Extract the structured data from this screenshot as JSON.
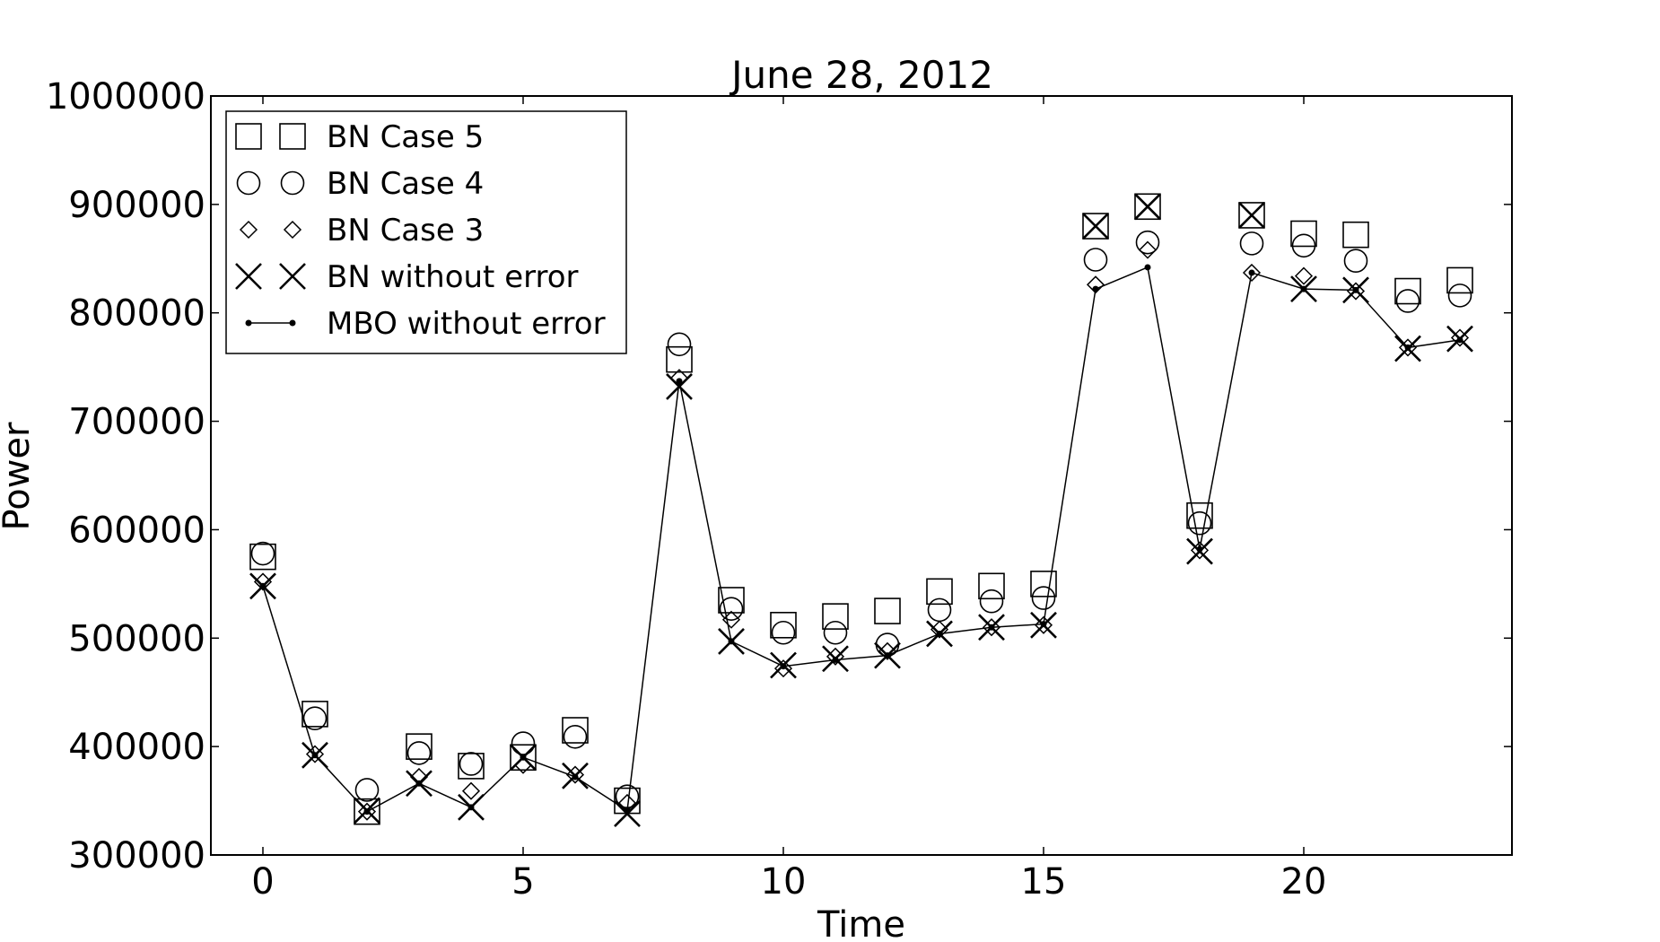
{
  "chart_data": {
    "type": "scatter",
    "title": "June 28, 2012",
    "xlabel": "Time",
    "ylabel": "Power",
    "xlim": [
      -1,
      24
    ],
    "ylim": [
      300000,
      1000000
    ],
    "xticks": [
      0,
      5,
      10,
      15,
      20
    ],
    "yticks": [
      300000,
      400000,
      500000,
      600000,
      700000,
      800000,
      900000,
      1000000
    ],
    "x_tick_labels": [
      "0",
      "5",
      "10",
      "15",
      "20"
    ],
    "y_tick_labels": [
      "300000",
      "400000",
      "500000",
      "600000",
      "700000",
      "800000",
      "900000",
      "1000000"
    ],
    "grid": false,
    "legend_position": "top-left",
    "x": [
      0,
      1,
      2,
      3,
      4,
      5,
      6,
      7,
      8,
      9,
      10,
      11,
      12,
      13,
      14,
      15,
      16,
      17,
      18,
      19,
      20,
      21,
      22,
      23
    ],
    "series": [
      {
        "name": "BN Case 5",
        "marker": "square",
        "values": [
          575000,
          430000,
          340000,
          400000,
          382000,
          390000,
          415000,
          350000,
          757000,
          535000,
          512000,
          520000,
          525000,
          543000,
          548000,
          550000,
          880000,
          898000,
          613000,
          890000,
          873000,
          872000,
          820000,
          830000
        ]
      },
      {
        "name": "BN Case 4",
        "marker": "circle",
        "values": [
          578000,
          426000,
          360000,
          394000,
          384000,
          403000,
          409000,
          354000,
          771000,
          527000,
          505000,
          505000,
          494000,
          526000,
          534000,
          537000,
          849000,
          865000,
          606000,
          864000,
          862000,
          848000,
          811000,
          816000
        ]
      },
      {
        "name": "BN Case 3",
        "marker": "diamond",
        "values": [
          552000,
          393000,
          340000,
          372000,
          359000,
          383000,
          374000,
          348000,
          740000,
          517000,
          472000,
          483000,
          488000,
          508000,
          510000,
          512000,
          826000,
          858000,
          581000,
          837000,
          834000,
          820000,
          768000,
          777000
        ]
      },
      {
        "name": "BN without error",
        "marker": "x",
        "values": [
          548000,
          392000,
          341000,
          366000,
          344000,
          390000,
          373000,
          338000,
          732000,
          497000,
          475000,
          481000,
          484000,
          504000,
          510000,
          512000,
          880000,
          898000,
          580000,
          890000,
          822000,
          821000,
          767000,
          776000
        ]
      },
      {
        "name": "MBO without error",
        "marker": "line-dot",
        "values": [
          548000,
          392000,
          340000,
          366000,
          344000,
          390000,
          372000,
          341000,
          737000,
          497000,
          474000,
          480000,
          484000,
          504000,
          510000,
          513000,
          822000,
          842000,
          582000,
          837000,
          822000,
          821000,
          768000,
          775000
        ]
      }
    ]
  }
}
